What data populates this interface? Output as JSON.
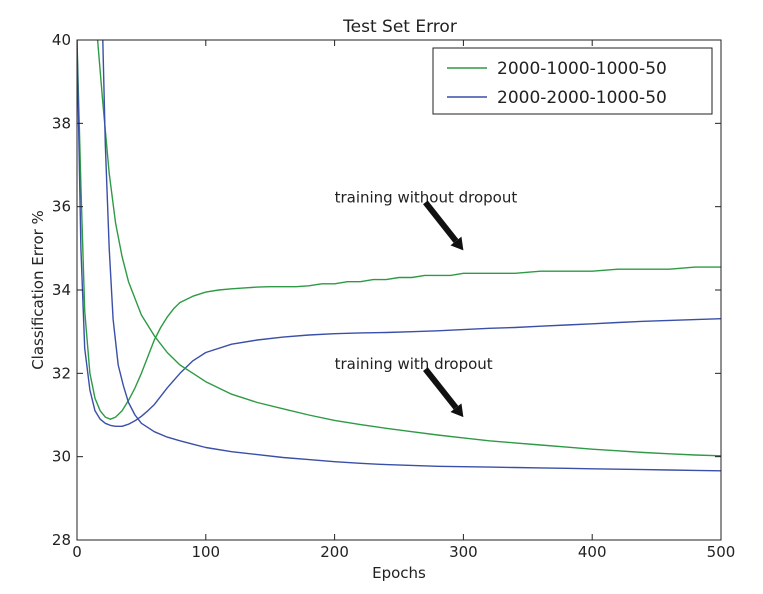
{
  "chart_data": {
    "type": "line",
    "title": "Test Set Error",
    "xlabel": "Epochs",
    "ylabel": "Classification Error %",
    "xlim": [
      0,
      500
    ],
    "ylim": [
      28,
      40
    ],
    "xticks": [
      0,
      100,
      200,
      300,
      400,
      500
    ],
    "yticks": [
      28,
      30,
      32,
      34,
      36,
      38,
      40
    ],
    "grid": false,
    "legend_position": "top-right",
    "series": [
      {
        "name": "2000-1000-1000-50",
        "group": "training without dropout",
        "color": "#2e9a45",
        "x": [
          0,
          3,
          6,
          10,
          14,
          18,
          22,
          26,
          30,
          35,
          40,
          45,
          50,
          55,
          60,
          65,
          70,
          75,
          80,
          90,
          100,
          110,
          120,
          130,
          140,
          150,
          160,
          170,
          180,
          190,
          200,
          210,
          220,
          230,
          240,
          250,
          260,
          270,
          280,
          290,
          300,
          320,
          340,
          360,
          380,
          400,
          420,
          440,
          460,
          480,
          500
        ],
        "y": [
          40,
          36.5,
          33.5,
          32.0,
          31.4,
          31.1,
          30.95,
          30.9,
          30.95,
          31.1,
          31.35,
          31.65,
          32.0,
          32.4,
          32.8,
          33.1,
          33.35,
          33.55,
          33.7,
          33.85,
          33.95,
          34.0,
          34.03,
          34.05,
          34.07,
          34.08,
          34.08,
          34.08,
          34.1,
          34.15,
          34.15,
          34.2,
          34.2,
          34.25,
          34.25,
          34.3,
          34.3,
          34.35,
          34.35,
          34.35,
          34.4,
          34.4,
          34.4,
          34.45,
          34.45,
          34.45,
          34.5,
          34.5,
          34.5,
          34.55,
          34.55
        ]
      },
      {
        "name": "2000-2000-1000-50",
        "group": "training without dropout",
        "color": "#3a4fa8",
        "x": [
          0,
          3,
          6,
          10,
          14,
          18,
          22,
          26,
          30,
          35,
          40,
          45,
          50,
          55,
          60,
          65,
          70,
          80,
          90,
          100,
          120,
          140,
          160,
          180,
          200,
          220,
          240,
          260,
          280,
          300,
          320,
          340,
          360,
          380,
          400,
          420,
          440,
          460,
          480,
          500
        ],
        "y": [
          40,
          35.0,
          32.6,
          31.6,
          31.1,
          30.9,
          30.8,
          30.75,
          30.73,
          30.73,
          30.78,
          30.86,
          30.97,
          31.1,
          31.25,
          31.45,
          31.65,
          32.0,
          32.3,
          32.5,
          32.7,
          32.8,
          32.87,
          32.92,
          32.95,
          32.97,
          32.98,
          33.0,
          33.02,
          33.05,
          33.08,
          33.1,
          33.13,
          33.16,
          33.19,
          33.22,
          33.25,
          33.27,
          33.29,
          33.31
        ]
      },
      {
        "name": "2000-1000-1000-50",
        "group": "training with dropout",
        "color": "#2e9a45",
        "x": [
          16,
          20,
          25,
          30,
          35,
          40,
          50,
          60,
          70,
          80,
          90,
          100,
          120,
          140,
          160,
          180,
          200,
          220,
          240,
          260,
          280,
          300,
          320,
          340,
          360,
          380,
          400,
          420,
          440,
          460,
          480,
          500
        ],
        "y": [
          40,
          38.5,
          36.8,
          35.6,
          34.8,
          34.2,
          33.4,
          32.9,
          32.5,
          32.2,
          32.0,
          31.8,
          31.5,
          31.3,
          31.15,
          31.0,
          30.87,
          30.77,
          30.68,
          30.6,
          30.52,
          30.45,
          30.38,
          30.33,
          30.28,
          30.23,
          30.18,
          30.14,
          30.1,
          30.07,
          30.04,
          30.02
        ]
      },
      {
        "name": "2000-2000-1000-50",
        "group": "training with dropout",
        "color": "#3a4fa8",
        "x": [
          20,
          22,
          25,
          28,
          32,
          36,
          40,
          45,
          50,
          60,
          70,
          80,
          90,
          100,
          120,
          140,
          160,
          180,
          200,
          220,
          240,
          260,
          280,
          300,
          320,
          340,
          360,
          380,
          400,
          420,
          440,
          460,
          480,
          500
        ],
        "y": [
          40,
          37.5,
          35.0,
          33.3,
          32.2,
          31.7,
          31.3,
          31.0,
          30.8,
          30.6,
          30.47,
          30.38,
          30.3,
          30.22,
          30.12,
          30.05,
          29.98,
          29.93,
          29.88,
          29.84,
          29.81,
          29.79,
          29.77,
          29.76,
          29.75,
          29.74,
          29.73,
          29.72,
          29.71,
          29.7,
          29.69,
          29.68,
          29.67,
          29.66
        ]
      }
    ],
    "legend": [
      "2000-1000-1000-50",
      "2000-2000-1000-50"
    ],
    "annotations": [
      {
        "text": "training without dropout",
        "text_at": [
          200,
          36.1
        ],
        "arrow_to": [
          300,
          34.95
        ]
      },
      {
        "text": "training with dropout",
        "text_at": [
          200,
          32.1
        ],
        "arrow_to": [
          300,
          30.95
        ]
      }
    ]
  }
}
